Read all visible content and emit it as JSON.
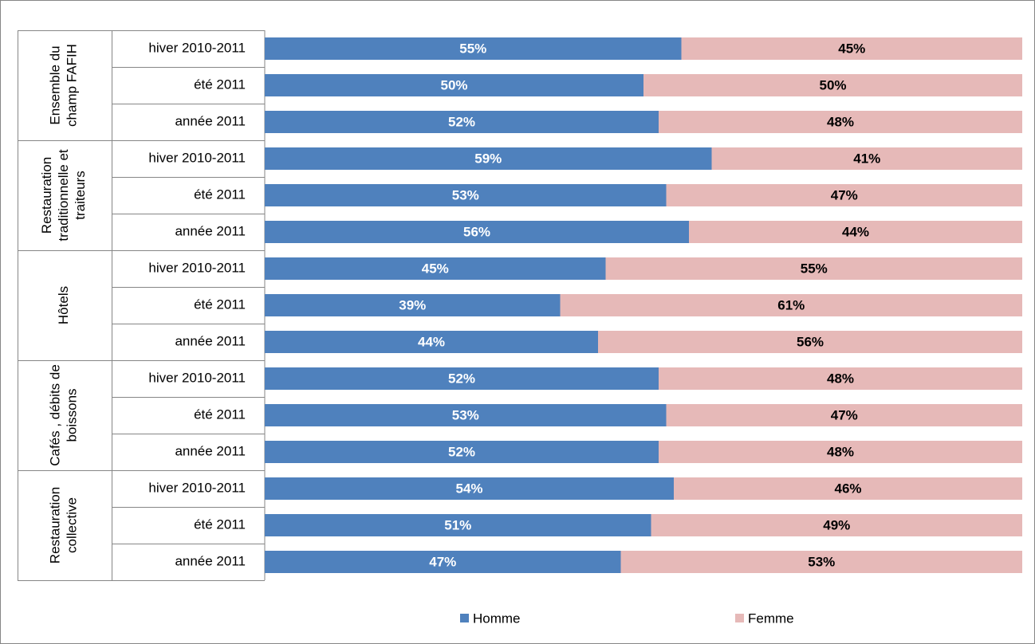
{
  "chart_data": {
    "type": "stacked_bar_horizontal",
    "groups": [
      "Ensemble du champ FAFIH",
      "Restauration traditionnelle et traiteurs",
      "Hôtels",
      "Cafés , débits de boissons",
      "Restauration collective"
    ],
    "categories": [
      "hiver 2010-2011",
      "été 2011",
      "année 2011",
      "hiver 2010-2011",
      "été 2011",
      "année 2011",
      "hiver 2010-2011",
      "été 2011",
      "année 2011",
      "hiver 2010-2011",
      "été 2011",
      "année 2011",
      "hiver 2010-2011",
      "été 2011",
      "année 2011"
    ],
    "series": [
      {
        "name": "Homme",
        "color": "#4f81bd",
        "label_color": "#ffffff",
        "values": [
          55,
          50,
          52,
          59,
          53,
          56,
          45,
          39,
          44,
          52,
          53,
          52,
          54,
          51,
          47
        ],
        "value_labels": [
          "55%",
          "50%",
          "52%",
          "59%",
          "53%",
          "56%",
          "45%",
          "39%",
          "44%",
          "52%",
          "53%",
          "52%",
          "54%",
          "51%",
          "47%"
        ]
      },
      {
        "name": "Femme",
        "color": "#e6b9b8",
        "label_color": "#000000",
        "values": [
          45,
          50,
          48,
          41,
          47,
          44,
          55,
          61,
          56,
          48,
          47,
          48,
          46,
          49,
          53
        ],
        "value_labels": [
          "45%",
          "50%",
          "48%",
          "41%",
          "47%",
          "44%",
          "55%",
          "61%",
          "56%",
          "48%",
          "47%",
          "48%",
          "46%",
          "49%",
          "53%"
        ]
      }
    ],
    "xlim": [
      0,
      100
    ],
    "legend": "bottom"
  }
}
